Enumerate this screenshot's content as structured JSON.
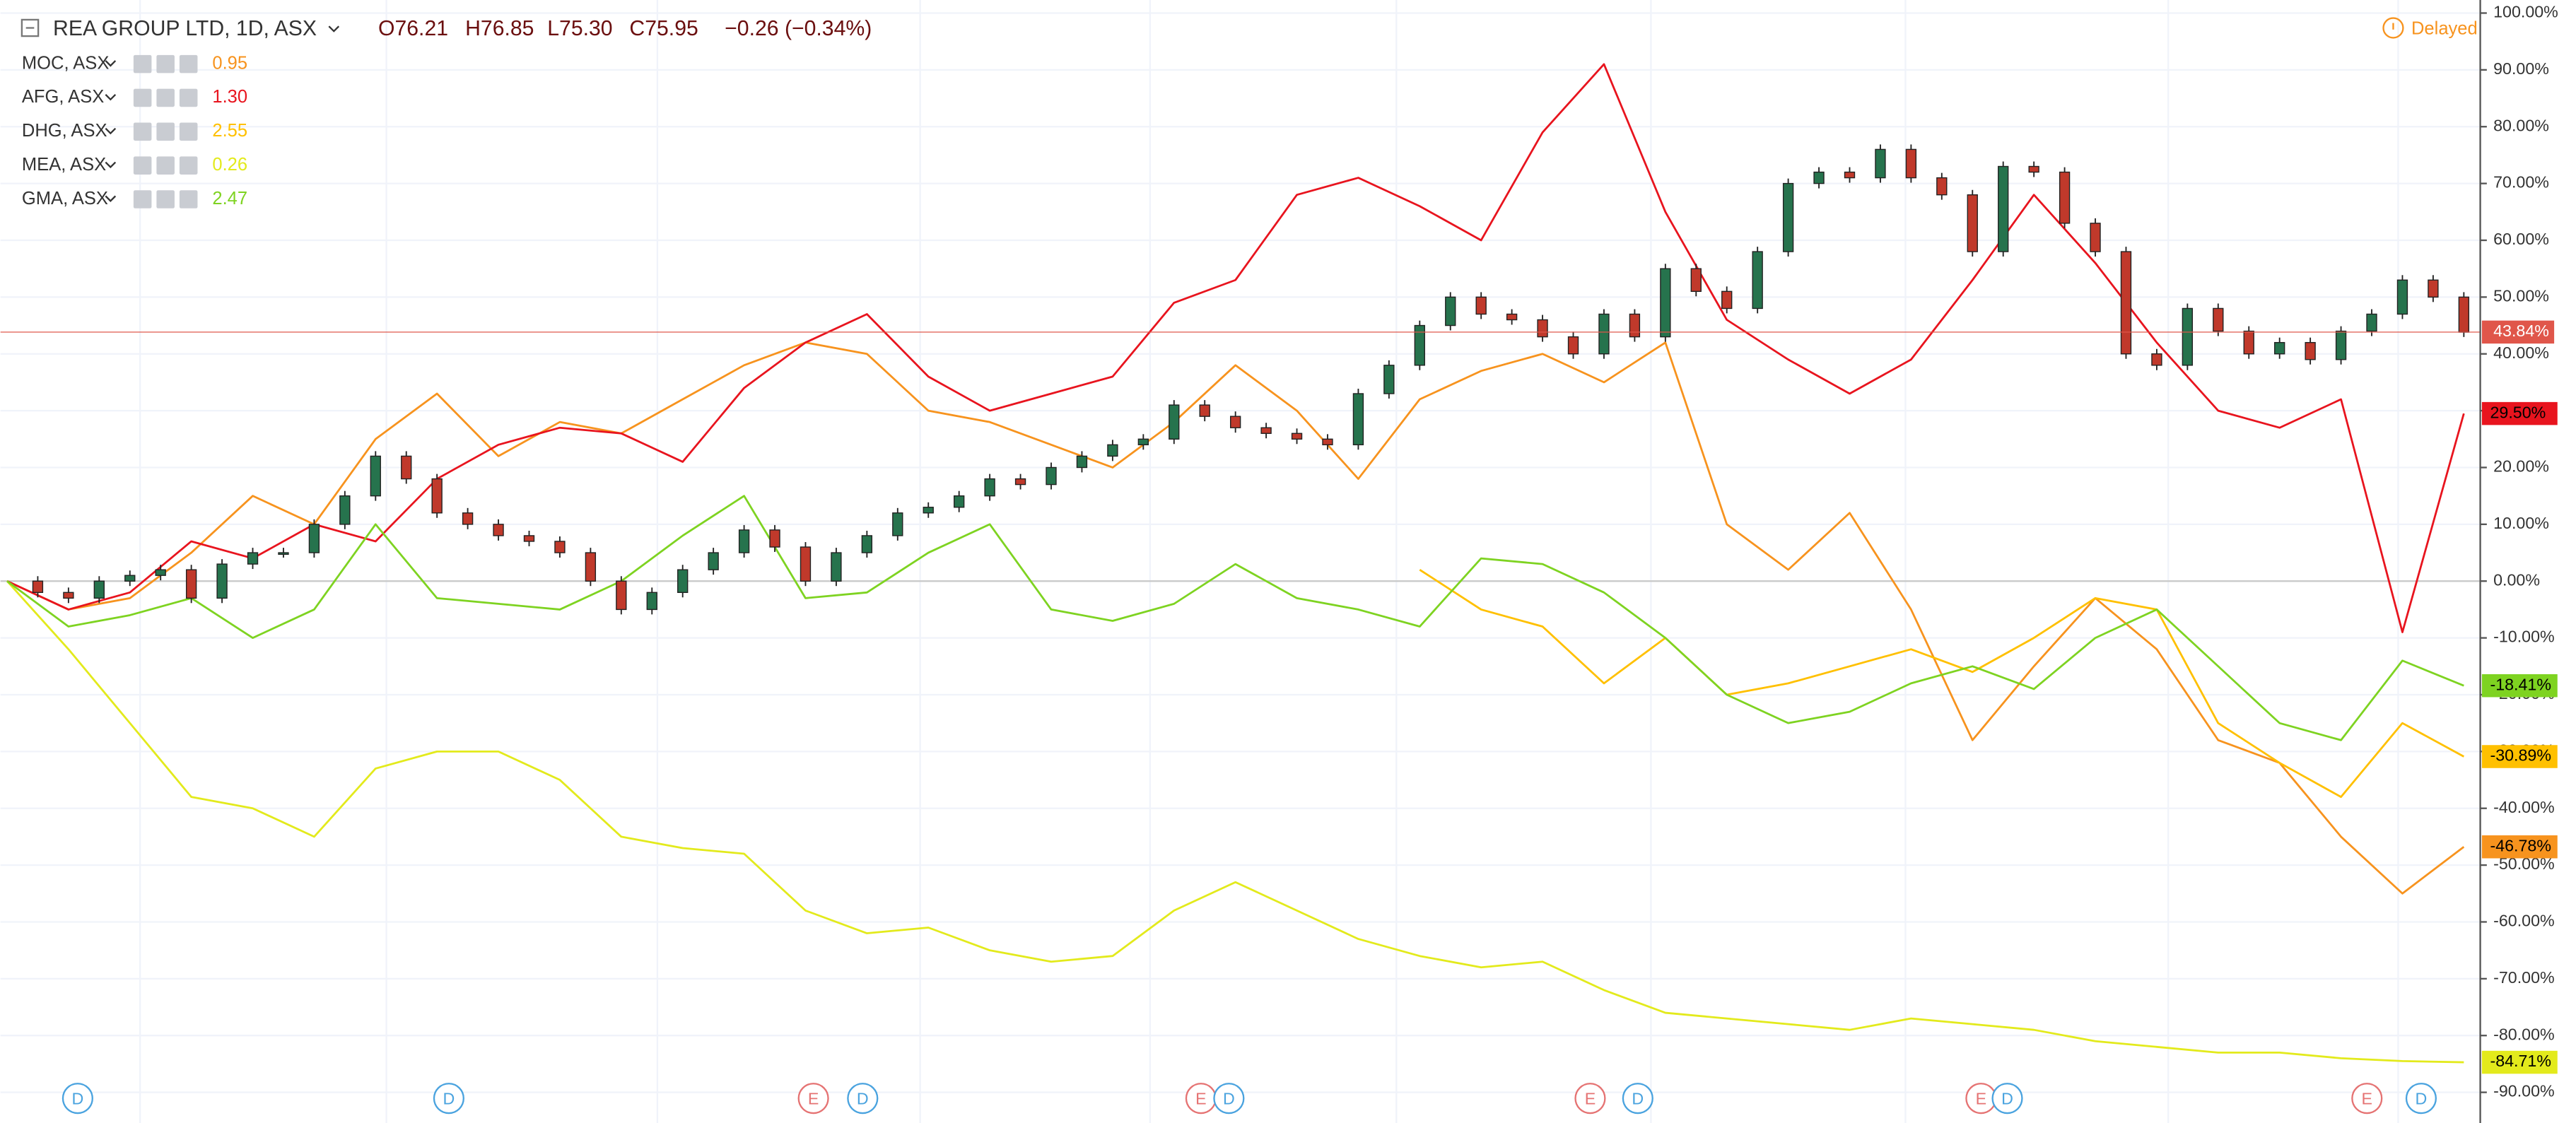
{
  "chart_data": {
    "type": "candlestick",
    "title": "REA GROUP LTD, 1D, ASX",
    "quote": [
      "O76.21",
      "H76.85",
      "L75.30",
      "C75.95"
    ],
    "change": "−0.26 (−0.34%)",
    "status": "Delayed",
    "ylim": [
      -95.4,
      102.3
    ],
    "yticks": [
      {
        "value": 100,
        "label": "100.00%"
      },
      {
        "value": 90,
        "label": "90.00%"
      },
      {
        "value": 80,
        "label": "80.00%"
      },
      {
        "value": 70,
        "label": "70.00%"
      },
      {
        "value": 60,
        "label": "60.00%"
      },
      {
        "value": 50,
        "label": "50.00%"
      },
      {
        "value": 40,
        "label": "40.00%"
      },
      {
        "value": 30,
        "label": "30.00%"
      },
      {
        "value": 20,
        "label": "20.00%"
      },
      {
        "value": 10,
        "label": "10.00%"
      },
      {
        "value": 0,
        "label": "0.00%"
      },
      {
        "value": -10,
        "label": "-10.00%"
      },
      {
        "value": -20,
        "label": "-20.00%"
      },
      {
        "value": -30,
        "label": "-30.00%"
      },
      {
        "value": -40,
        "label": "-40.00%"
      },
      {
        "value": -50,
        "label": "-50.00%"
      },
      {
        "value": -60,
        "label": "-60.00%"
      },
      {
        "value": -70,
        "label": "-70.00%"
      },
      {
        "value": -80,
        "label": "-80.00%"
      },
      {
        "value": -90,
        "label": "-90.00%"
      }
    ],
    "grid": true,
    "main": {
      "up_color": "#26734d",
      "down_color": "#c0392b",
      "label_color": "#e0564a",
      "end_label": "43.84%",
      "values": [
        0,
        -2,
        -3,
        0,
        1,
        2,
        -3,
        3,
        5,
        5,
        10,
        15,
        22,
        18,
        12,
        10,
        8,
        7,
        5,
        0,
        -5,
        -2,
        2,
        5,
        9,
        6,
        0,
        5,
        8,
        12,
        13,
        15,
        18,
        17,
        20,
        22,
        24,
        25,
        31,
        29,
        27,
        26,
        25,
        24,
        33,
        38,
        45,
        50,
        47,
        46,
        43,
        40,
        47,
        43,
        55,
        51,
        48,
        58,
        70,
        72,
        71,
        76,
        71,
        68,
        58,
        73,
        72,
        63,
        58,
        40,
        38,
        48,
        44,
        40,
        42,
        39,
        44,
        47,
        53,
        50,
        43.84
      ]
    },
    "series": [
      {
        "name": "MOC, ASX",
        "price": "0.95",
        "color": "#f7931e",
        "end_label": "-46.78%",
        "values": [
          0,
          -5,
          -3,
          5,
          15,
          10,
          25,
          33,
          22,
          28,
          26,
          32,
          38,
          42,
          40,
          30,
          28,
          24,
          20,
          28,
          38,
          30,
          18,
          32,
          37,
          40,
          35,
          42,
          10,
          2,
          12,
          -5,
          -28,
          -15,
          -3,
          -12,
          -28,
          -32,
          -45,
          -55,
          -46.78
        ]
      },
      {
        "name": "AFG, ASX",
        "price": "1.30",
        "color": "#e8141e",
        "end_label": "29.50%",
        "values": [
          0,
          -5,
          -2,
          7,
          4,
          10,
          7,
          18,
          24,
          27,
          26,
          21,
          34,
          42,
          47,
          36,
          30,
          33,
          36,
          49,
          53,
          68,
          71,
          66,
          60,
          79,
          91,
          65,
          46,
          39,
          33,
          39,
          53,
          68,
          56,
          42,
          30,
          27,
          32,
          -9,
          29.5
        ]
      },
      {
        "name": "DHG, ASX",
        "price": "2.55",
        "color": "#ffc000",
        "end_label": "-30.89%",
        "values": [
          null,
          null,
          null,
          null,
          null,
          null,
          null,
          null,
          null,
          null,
          null,
          null,
          null,
          null,
          null,
          null,
          null,
          null,
          null,
          null,
          null,
          null,
          null,
          2,
          -5,
          -8,
          -18,
          -10,
          -20,
          -18,
          -15,
          -12,
          -16,
          -10,
          -3,
          -5,
          -25,
          -32,
          -38,
          -25,
          -30.89
        ]
      },
      {
        "name": "MEA, ASX",
        "price": "0.26",
        "color": "#e3ea1c",
        "end_label": "-84.71%",
        "values": [
          0,
          -12,
          -25,
          -38,
          -40,
          -45,
          -33,
          -30,
          -30,
          -35,
          -45,
          -47,
          -48,
          -58,
          -62,
          -61,
          -65,
          -67,
          -66,
          -58,
          -53,
          -58,
          -63,
          -66,
          -68,
          -67,
          -72,
          -76,
          -77,
          -78,
          -79,
          -77,
          -78,
          -79,
          -81,
          -82,
          -83,
          -83,
          -84,
          -84.5,
          -84.71
        ]
      },
      {
        "name": "GMA, ASX",
        "price": "2.47",
        "color": "#7ed321",
        "end_label": "-18.41%",
        "values": [
          0,
          -8,
          -6,
          -3,
          -10,
          -5,
          10,
          -3,
          -4,
          -5,
          0,
          8,
          15,
          -3,
          -2,
          5,
          10,
          -5,
          -7,
          -4,
          3,
          -3,
          -5,
          -8,
          4,
          3,
          -2,
          -10,
          -20,
          -25,
          -23,
          -18,
          -15,
          -19,
          -10,
          -5,
          -15,
          -25,
          -28,
          -14,
          -18.41
        ]
      }
    ],
    "events": [
      "D",
      "D",
      "E",
      "D",
      "E",
      "D",
      "E",
      "D",
      "E",
      "D",
      "E",
      "D"
    ]
  }
}
